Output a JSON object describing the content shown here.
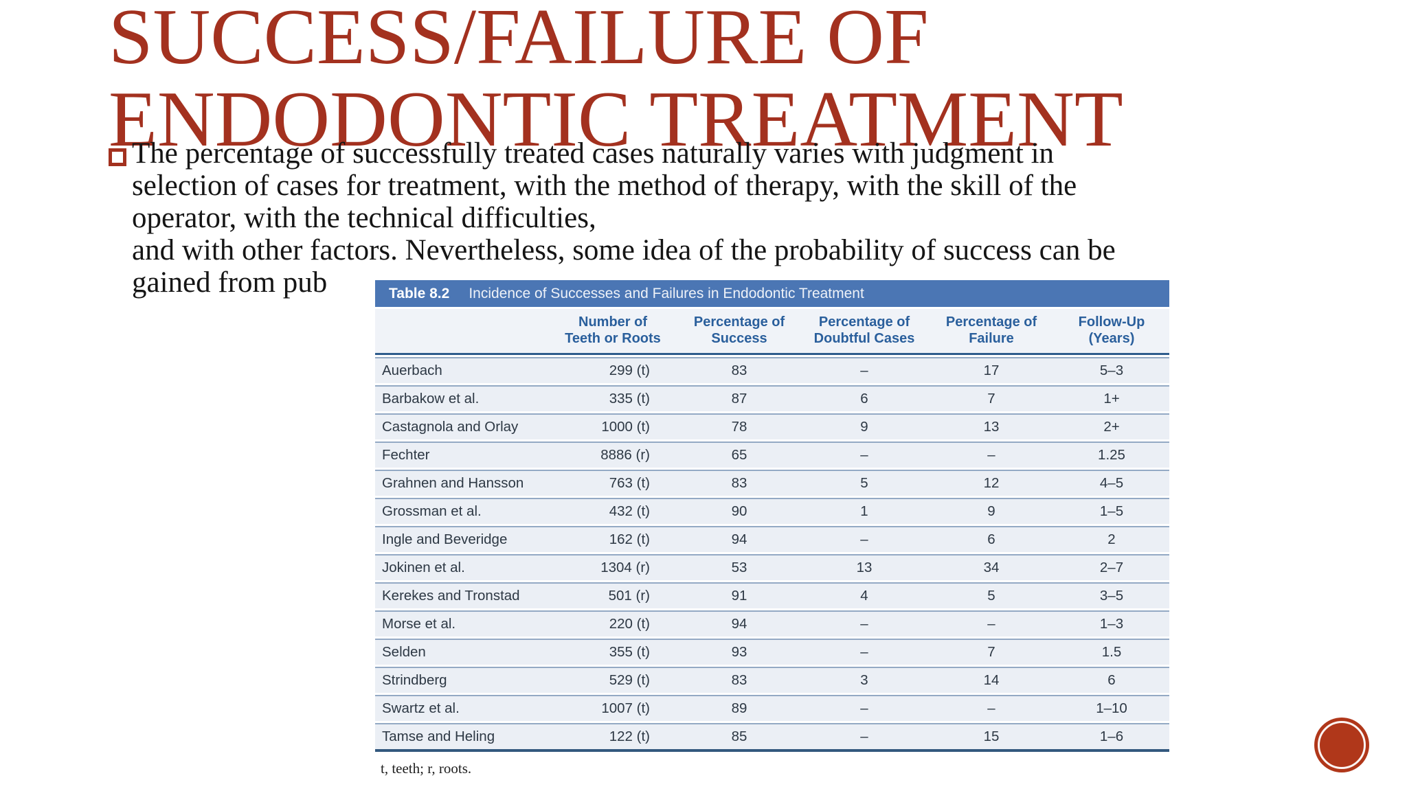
{
  "slide": {
    "title_line1": "SUCCESS/FAILURE OF",
    "title_line2": "ENDODONTIC TREATMENT",
    "accent_color": "#a3311f",
    "badge_color": "#b0371a",
    "body_lines": [
      "The percentage of successfully treated cases naturally varies with judgment in",
      "selection of cases for treatment, with the method of therapy, with the skill of the",
      "operator, with the technical difficulties,",
      "and with other factors. Nevertheless, some idea of the probability of success can be",
      "gained from pub"
    ]
  },
  "table": {
    "caption_label": "Table 8.2",
    "caption_title": "Incidence of Successes and Failures in Endodontic Treatment",
    "header_bg": "#4b76b4",
    "header_text_color": "#2a5f9c",
    "columns": [
      "",
      "Number of\nTeeth or Roots",
      "Percentage of\nSuccess",
      "Percentage of\nDoubtful Cases",
      "Percentage of\nFailure",
      "Follow-Up\n(Years)"
    ],
    "rows": [
      [
        "Auerbach",
        "299 (t)",
        "83",
        "–",
        "17",
        "5–3"
      ],
      [
        "Barbakow et al.",
        "335 (t)",
        "87",
        "6",
        "7",
        "1+"
      ],
      [
        "Castagnola and Orlay",
        "1000 (t)",
        "78",
        "9",
        "13",
        "2+"
      ],
      [
        "Fechter",
        "8886 (r)",
        "65",
        "–",
        "–",
        "1.25"
      ],
      [
        "Grahnen and Hansson",
        "763 (t)",
        "83",
        "5",
        "12",
        "4–5"
      ],
      [
        "Grossman et al.",
        "432 (t)",
        "90",
        "1",
        "9",
        "1–5"
      ],
      [
        "Ingle and Beveridge",
        "162 (t)",
        "94",
        "–",
        "6",
        "2"
      ],
      [
        "Jokinen et al.",
        "1304 (r)",
        "53",
        "13",
        "34",
        "2–7"
      ],
      [
        "Kerekes and Tronstad",
        "501 (r)",
        "91",
        "4",
        "5",
        "3–5"
      ],
      [
        "Morse et al.",
        "220 (t)",
        "94",
        "–",
        "–",
        "1–3"
      ],
      [
        "Selden",
        "355 (t)",
        "93",
        "–",
        "7",
        "1.5"
      ],
      [
        "Strindberg",
        "529 (t)",
        "83",
        "3",
        "14",
        "6"
      ],
      [
        "Swartz et al.",
        "1007 (t)",
        "89",
        "–",
        "–",
        "1–10"
      ],
      [
        "Tamse and Heling",
        "122 (t)",
        "85",
        "–",
        "15",
        "1–6"
      ]
    ],
    "footnote": "t, teeth; r, roots."
  }
}
